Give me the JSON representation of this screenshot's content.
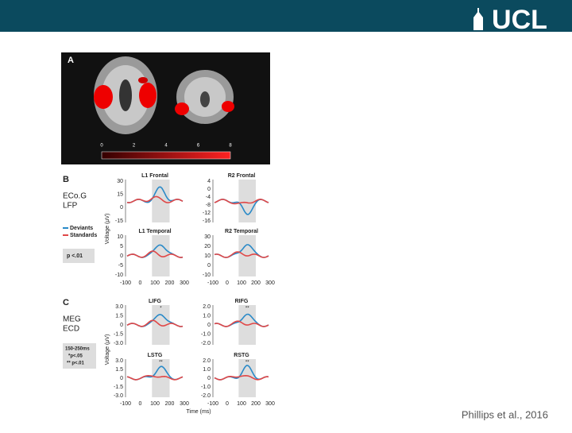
{
  "header": {
    "logo": "UCL"
  },
  "citation": "Phillips et al., 2016",
  "panel_a": {
    "label": "A",
    "colorbar_ticks": [
      "0",
      "2",
      "4",
      "6",
      "8"
    ]
  },
  "panel_b": {
    "label": "B",
    "method": [
      "ECo.G",
      "LFP"
    ],
    "legend": [
      "Deviants",
      "Standards"
    ],
    "note": "p <.01",
    "ylabel": "Voltage (μV)",
    "xticks": [
      "-100",
      "0",
      "100",
      "200",
      "300"
    ],
    "plots": [
      {
        "title": "L1 Frontal",
        "yticks": [
          "30",
          "15",
          "0",
          "-15"
        ]
      },
      {
        "title": "R2 Frontal",
        "yticks": [
          "4",
          "0",
          "-4",
          "-8",
          "-12",
          "-16"
        ]
      },
      {
        "title": "L1 Temporal",
        "yticks": [
          "10",
          "5",
          "0",
          "-5",
          "-10"
        ]
      },
      {
        "title": "R2 Temporal",
        "yticks": [
          "30",
          "20",
          "10",
          "0",
          "-10"
        ]
      }
    ]
  },
  "panel_c": {
    "label": "C",
    "method": [
      "MEG",
      "ECD"
    ],
    "note": [
      "150-250ms",
      "*p<.05",
      "** p<.01"
    ],
    "ylabel": "Voltage (μV)",
    "xlabel": "Time (ms)",
    "xticks": [
      "-100",
      "0",
      "100",
      "200",
      "300"
    ],
    "plots": [
      {
        "title": "LIFG",
        "yticks": [
          "3.0",
          "1.5",
          "0",
          "-1.5",
          "-3.0"
        ],
        "sig": "*"
      },
      {
        "title": "RIFG",
        "yticks": [
          "2.0",
          "1.0",
          "0",
          "-1.0",
          "-2.0"
        ],
        "sig": "**"
      },
      {
        "title": "LSTG",
        "yticks": [
          "3.0",
          "1.5",
          "0",
          "-1.5",
          "-3.0"
        ],
        "sig": "**"
      },
      {
        "title": "RSTG",
        "yticks": [
          "2.0",
          "1.0",
          "0",
          "-1.0",
          "-2.0"
        ],
        "sig": "**"
      }
    ]
  }
}
